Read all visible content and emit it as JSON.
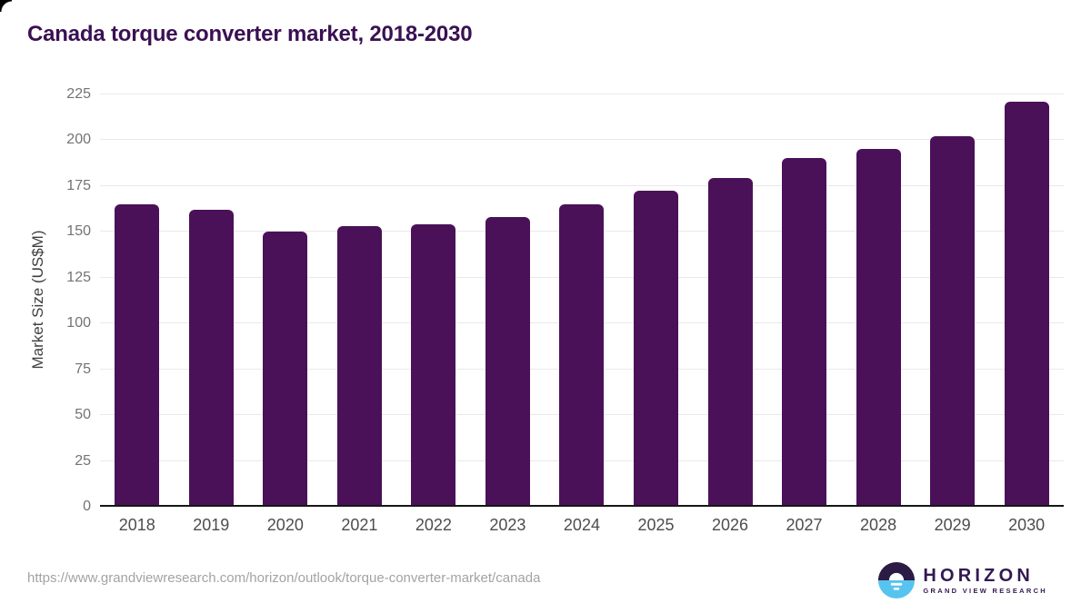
{
  "page": {
    "title": "Canada torque converter market, 2018-2030"
  },
  "chart_data": {
    "type": "bar",
    "title": "Canada torque converter market, 2018-2030",
    "categories": [
      "2018",
      "2019",
      "2020",
      "2021",
      "2022",
      "2023",
      "2024",
      "2025",
      "2026",
      "2027",
      "2028",
      "2029",
      "2030"
    ],
    "values": [
      165,
      162,
      150,
      153,
      154,
      158,
      165,
      172,
      179,
      190,
      195,
      202,
      221
    ],
    "xlabel": "",
    "ylabel": "Market Size (US$M)",
    "ylim": [
      0,
      225
    ],
    "ytick_step": 25,
    "grid": true,
    "legend": null,
    "bar_color": "#4a1158"
  },
  "footer": {
    "source_url": "https://www.grandviewresearch.com/horizon/outlook/torque-converter-market/canada",
    "logo_name": "HORIZON",
    "logo_subtitle": "GRAND VIEW RESEARCH"
  },
  "colors": {
    "bar-color": "#4a1158",
    "title-color": "#3a1053",
    "axis-color": "#161616",
    "grid-color": "#e9e9e9",
    "ytick-color": "#737373",
    "xtick-color": "#4d4d4d",
    "ylabel-color": "#3f3f3f",
    "url-color": "#a3a3a3",
    "logo-dark": "#2b1b45",
    "logo-blue": "#57c4f0",
    "logo-text-color": "#321a52"
  }
}
